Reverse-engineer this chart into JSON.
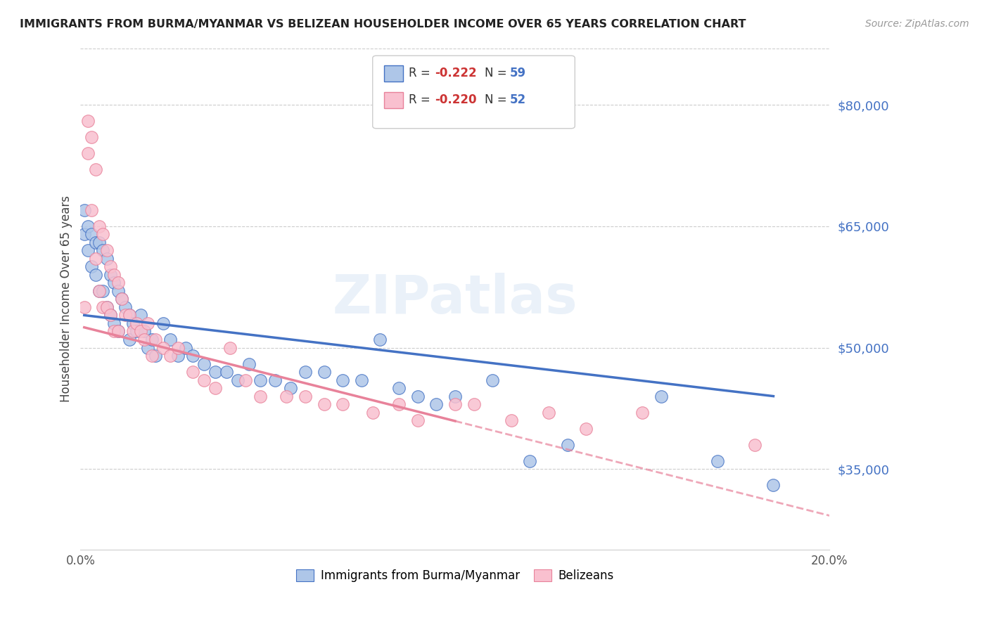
{
  "title": "IMMIGRANTS FROM BURMA/MYANMAR VS BELIZEAN HOUSEHOLDER INCOME OVER 65 YEARS CORRELATION CHART",
  "source": "Source: ZipAtlas.com",
  "ylabel": "Householder Income Over 65 years",
  "xlim": [
    0.0,
    0.2
  ],
  "ylim": [
    25000,
    87000
  ],
  "xticks": [
    0.0,
    0.05,
    0.1,
    0.15,
    0.2
  ],
  "xticklabels": [
    "0.0%",
    "",
    "",
    "",
    "20.0%"
  ],
  "yticks": [
    35000,
    50000,
    65000,
    80000
  ],
  "yticklabels": [
    "$35,000",
    "$50,000",
    "$65,000",
    "$80,000"
  ],
  "color_blue": "#aec6e8",
  "color_pink": "#f9c0cf",
  "line_blue": "#4472c4",
  "line_pink": "#e8829a",
  "watermark": "ZIPatlas",
  "blue_x": [
    0.001,
    0.001,
    0.002,
    0.002,
    0.003,
    0.003,
    0.004,
    0.004,
    0.005,
    0.005,
    0.006,
    0.006,
    0.007,
    0.007,
    0.008,
    0.008,
    0.009,
    0.009,
    0.01,
    0.01,
    0.011,
    0.012,
    0.013,
    0.013,
    0.014,
    0.015,
    0.016,
    0.017,
    0.018,
    0.019,
    0.02,
    0.022,
    0.024,
    0.026,
    0.028,
    0.03,
    0.033,
    0.036,
    0.039,
    0.042,
    0.045,
    0.048,
    0.052,
    0.056,
    0.06,
    0.065,
    0.07,
    0.075,
    0.08,
    0.085,
    0.09,
    0.095,
    0.1,
    0.11,
    0.12,
    0.13,
    0.155,
    0.17,
    0.185
  ],
  "blue_y": [
    64000,
    67000,
    65000,
    62000,
    64000,
    60000,
    63000,
    59000,
    63000,
    57000,
    62000,
    57000,
    61000,
    55000,
    59000,
    54000,
    58000,
    53000,
    57000,
    52000,
    56000,
    55000,
    54000,
    51000,
    53000,
    52000,
    54000,
    52000,
    50000,
    51000,
    49000,
    53000,
    51000,
    49000,
    50000,
    49000,
    48000,
    47000,
    47000,
    46000,
    48000,
    46000,
    46000,
    45000,
    47000,
    47000,
    46000,
    46000,
    51000,
    45000,
    44000,
    43000,
    44000,
    46000,
    36000,
    38000,
    44000,
    36000,
    33000
  ],
  "pink_x": [
    0.001,
    0.002,
    0.002,
    0.003,
    0.003,
    0.004,
    0.004,
    0.005,
    0.005,
    0.006,
    0.006,
    0.007,
    0.007,
    0.008,
    0.008,
    0.009,
    0.009,
    0.01,
    0.01,
    0.011,
    0.012,
    0.013,
    0.014,
    0.015,
    0.016,
    0.017,
    0.018,
    0.019,
    0.02,
    0.022,
    0.024,
    0.026,
    0.03,
    0.033,
    0.036,
    0.04,
    0.044,
    0.048,
    0.055,
    0.06,
    0.065,
    0.07,
    0.078,
    0.085,
    0.09,
    0.1,
    0.105,
    0.115,
    0.125,
    0.135,
    0.15,
    0.18
  ],
  "pink_y": [
    55000,
    78000,
    74000,
    76000,
    67000,
    72000,
    61000,
    65000,
    57000,
    64000,
    55000,
    62000,
    55000,
    60000,
    54000,
    59000,
    52000,
    58000,
    52000,
    56000,
    54000,
    54000,
    52000,
    53000,
    52000,
    51000,
    53000,
    49000,
    51000,
    50000,
    49000,
    50000,
    47000,
    46000,
    45000,
    50000,
    46000,
    44000,
    44000,
    44000,
    43000,
    43000,
    42000,
    43000,
    41000,
    43000,
    43000,
    41000,
    42000,
    40000,
    42000,
    38000
  ],
  "blue_line_x0": 0.001,
  "blue_line_x1": 0.185,
  "blue_line_y0": 54000,
  "blue_line_y1": 44000,
  "pink_line_x0": 0.001,
  "pink_line_x1": 0.155,
  "pink_line_y0": 52500,
  "pink_line_y1": 34500
}
